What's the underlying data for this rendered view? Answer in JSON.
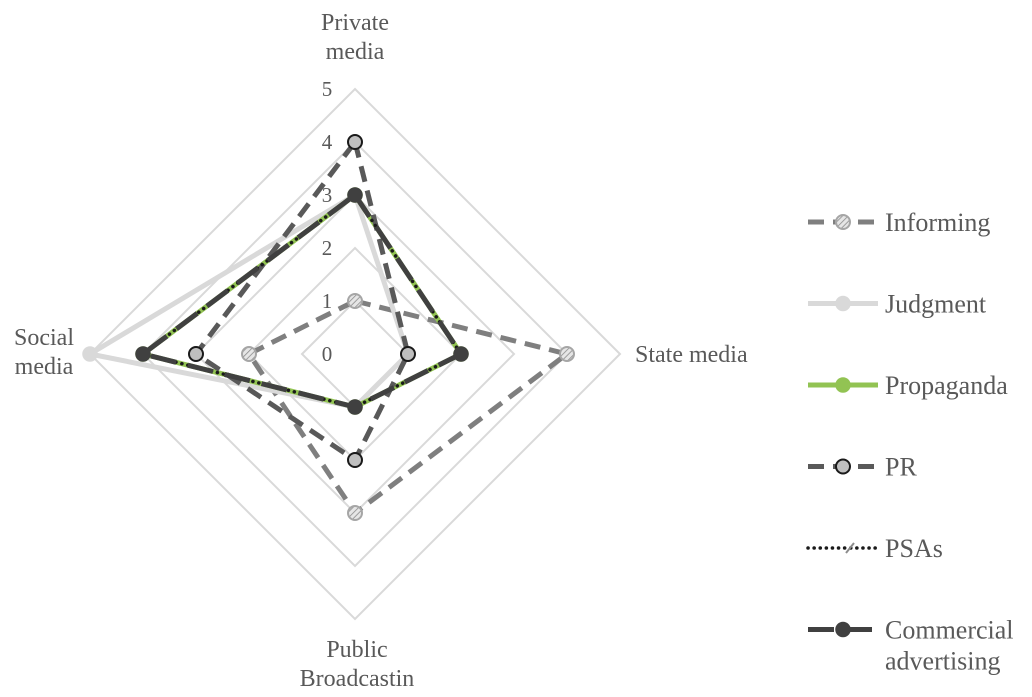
{
  "chart_data": {
    "type": "radar",
    "axes": [
      "Private media",
      "State media",
      "Public Broadcastin",
      "Social media"
    ],
    "axis_label_lines": [
      [
        "Private",
        "media"
      ],
      [
        "State media"
      ],
      [
        "Public",
        "Broadcastin"
      ],
      [
        "Social",
        "media"
      ]
    ],
    "rlim": [
      0,
      5
    ],
    "ticks": [
      "0",
      "1",
      "2",
      "3",
      "4",
      "5"
    ],
    "grid": true,
    "legend_position": "right",
    "series": [
      {
        "name": "Informing",
        "values": [
          1,
          4,
          3,
          2
        ],
        "color": "#7f7f7f",
        "style": "dashed",
        "marker": "circle-hatched"
      },
      {
        "name": "Judgment",
        "values": [
          3,
          1,
          1,
          5
        ],
        "color": "#d9d9d9",
        "style": "solid",
        "marker": "circle"
      },
      {
        "name": "Propaganda",
        "values": [
          3,
          2,
          1,
          4
        ],
        "color": "#92c353",
        "style": "solid",
        "marker": "circle"
      },
      {
        "name": "PR",
        "values": [
          4,
          1,
          2,
          3
        ],
        "color": "#595959",
        "style": "dashed",
        "marker": "circle-outlined"
      },
      {
        "name": "PSAs",
        "values": [
          3,
          2,
          1,
          4
        ],
        "color": "#1a1a1a",
        "style": "dotted",
        "marker": "none"
      },
      {
        "name": "Commercial advertising",
        "values": [
          3,
          2,
          1,
          4
        ],
        "color": "#404040",
        "style": "long-dash",
        "marker": "circle"
      }
    ],
    "legend_label_lines": [
      [
        "Informing"
      ],
      [
        "Judgment"
      ],
      [
        "Propaganda"
      ],
      [
        "PR"
      ],
      [
        "PSAs"
      ],
      [
        "Commercial",
        "advertising"
      ]
    ]
  }
}
